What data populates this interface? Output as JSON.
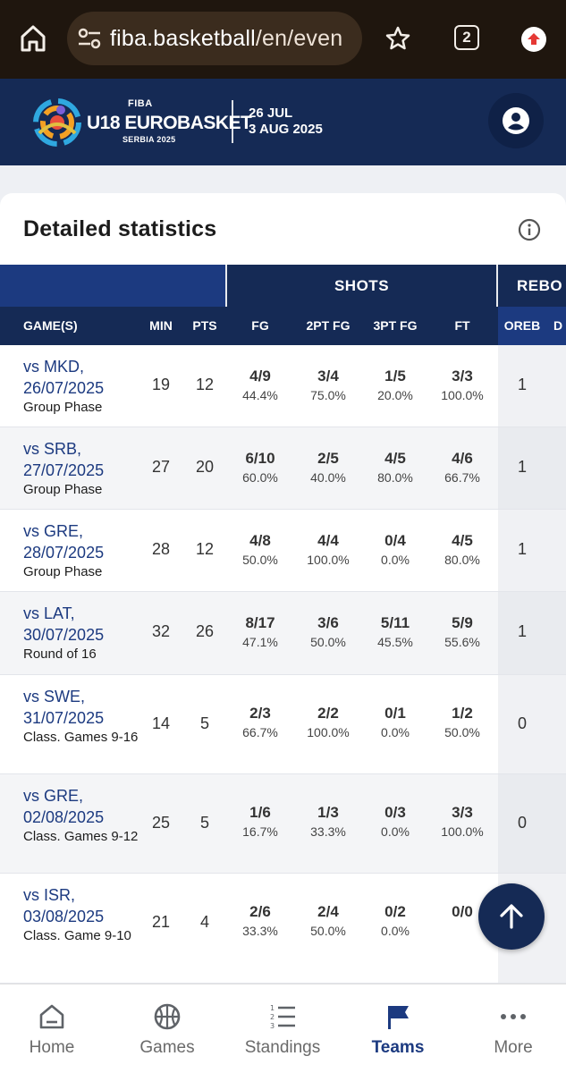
{
  "browser": {
    "url_host": "fiba.basketball",
    "url_path": "/en/even",
    "tab_count": "2"
  },
  "site": {
    "logo_fiba": "FIBA",
    "logo_title": "U18 EUROBASKET",
    "logo_sub": "SERBIA 2025",
    "date_start": "26 JUL",
    "date_end": "3 AUG 2025"
  },
  "card": {
    "title": "Detailed statistics"
  },
  "table": {
    "group_shots": "SHOTS",
    "group_rebounds": "REBO",
    "columns": {
      "games": "GAME(S)",
      "min": "MIN",
      "pts": "PTS",
      "fg": "FG",
      "fg2": "2PT FG",
      "fg3": "3PT FG",
      "ft": "FT",
      "oreb": "OREB",
      "dreb": "D"
    },
    "rows": [
      {
        "opp": "vs MKD,",
        "date": "26/07/2025",
        "phase": "Group Phase",
        "min": "19",
        "pts": "12",
        "fg": "4/9",
        "fg_pct": "44.4%",
        "fg2": "3/4",
        "fg2_pct": "75.0%",
        "fg3": "1/5",
        "fg3_pct": "20.0%",
        "ft": "3/3",
        "ft_pct": "100.0%",
        "oreb": "1"
      },
      {
        "opp": "vs SRB,",
        "date": "27/07/2025",
        "phase": "Group Phase",
        "min": "27",
        "pts": "20",
        "fg": "6/10",
        "fg_pct": "60.0%",
        "fg2": "2/5",
        "fg2_pct": "40.0%",
        "fg3": "4/5",
        "fg3_pct": "80.0%",
        "ft": "4/6",
        "ft_pct": "66.7%",
        "oreb": "1"
      },
      {
        "opp": "vs GRE,",
        "date": "28/07/2025",
        "phase": "Group Phase",
        "min": "28",
        "pts": "12",
        "fg": "4/8",
        "fg_pct": "50.0%",
        "fg2": "4/4",
        "fg2_pct": "100.0%",
        "fg3": "0/4",
        "fg3_pct": "0.0%",
        "ft": "4/5",
        "ft_pct": "80.0%",
        "oreb": "1"
      },
      {
        "opp": "vs LAT,",
        "date": "30/07/2025",
        "phase": "Round of 16",
        "min": "32",
        "pts": "26",
        "fg": "8/17",
        "fg_pct": "47.1%",
        "fg2": "3/6",
        "fg2_pct": "50.0%",
        "fg3": "5/11",
        "fg3_pct": "45.5%",
        "ft": "5/9",
        "ft_pct": "55.6%",
        "oreb": "1"
      },
      {
        "opp": "vs SWE,",
        "date": "31/07/2025",
        "phase": "Class. Games 9-16",
        "min": "14",
        "pts": "5",
        "fg": "2/3",
        "fg_pct": "66.7%",
        "fg2": "2/2",
        "fg2_pct": "100.0%",
        "fg3": "0/1",
        "fg3_pct": "0.0%",
        "ft": "1/2",
        "ft_pct": "50.0%",
        "oreb": "0"
      },
      {
        "opp": "vs GRE,",
        "date": "02/08/2025",
        "phase": "Class. Games 9-12",
        "min": "25",
        "pts": "5",
        "fg": "1/6",
        "fg_pct": "16.7%",
        "fg2": "1/3",
        "fg2_pct": "33.3%",
        "fg3": "0/3",
        "fg3_pct": "0.0%",
        "ft": "3/3",
        "ft_pct": "100.0%",
        "oreb": "0"
      },
      {
        "opp": "vs ISR,",
        "date": "03/08/2025",
        "phase": "Class. Game 9-10",
        "min": "21",
        "pts": "4",
        "fg": "2/6",
        "fg_pct": "33.3%",
        "fg2": "2/4",
        "fg2_pct": "50.0%",
        "fg3": "0/2",
        "fg3_pct": "0.0%",
        "ft": "0/0",
        "ft_pct": "",
        "oreb": ""
      }
    ]
  },
  "nav": {
    "items": [
      {
        "label": "Home",
        "icon": "home-icon"
      },
      {
        "label": "Games",
        "icon": "basketball-icon"
      },
      {
        "label": "Standings",
        "icon": "list-icon"
      },
      {
        "label": "Teams",
        "icon": "flag-icon"
      },
      {
        "label": "More",
        "icon": "more-icon"
      }
    ],
    "active": "Teams"
  },
  "colors": {
    "navy": "#152a55",
    "blue": "#1c3a80",
    "chrome": "#1f160e"
  }
}
